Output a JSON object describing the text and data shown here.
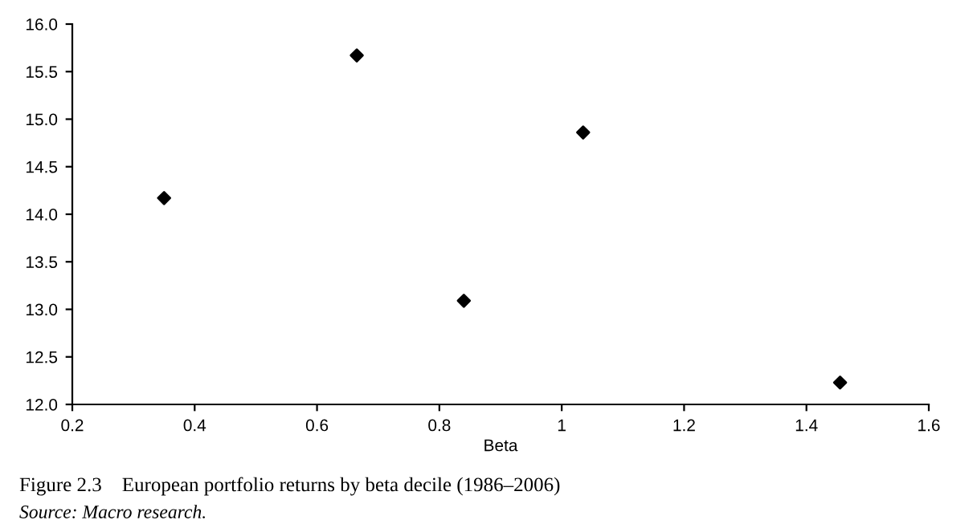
{
  "chart_data": {
    "type": "scatter",
    "title": "Figure 2.3    European portfolio returns by beta decile (1986–2006)",
    "xlabel": "Beta",
    "annotations": [
      "Source: Macro research."
    ],
    "x": [
      0.35,
      0.665,
      0.84,
      1.035,
      1.455
    ],
    "series": [
      {
        "color": "#000000",
        "values": [
          14.17,
          15.67,
          13.09,
          14.86,
          12.23
        ]
      }
    ],
    "marker": "diamond",
    "xlim": [
      0.2,
      1.6
    ],
    "xticks": [
      0.2,
      0.4,
      0.6,
      0.8,
      1,
      1.2,
      1.4,
      1.6
    ],
    "ylim": [
      12.0,
      16.0
    ],
    "yticks": [
      {
        "value": 12.0,
        "label": "12.0"
      },
      12.5,
      {
        "value": 13.0,
        "label": "13.0"
      },
      13.5,
      {
        "value": 14.0,
        "label": "14.0"
      },
      14.5,
      {
        "value": 15.0,
        "label": "15.0"
      },
      15.5,
      {
        "value": 16.0,
        "label": "16.0"
      }
    ],
    "grid": false,
    "legend": false
  }
}
